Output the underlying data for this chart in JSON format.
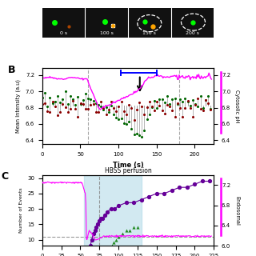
{
  "panel_B": {
    "xlim": [
      0,
      225
    ],
    "dashed_lines": [
      60,
      180
    ],
    "xticks": [
      0,
      50,
      100,
      150,
      200
    ],
    "xlabel": "Time (s)",
    "ylabel_left": "Mean Intensity (a.u)",
    "ylabel_right": "Cytosolic pH",
    "right_yticks": [
      6.4,
      6.6,
      6.8,
      7.0,
      7.2
    ],
    "ylim": [
      6.35,
      7.28
    ],
    "magenta_color": "#FF00FF",
    "green_color": "#006600",
    "dark_red_color": "#8B0000",
    "gray_stem_color": "#999999",
    "blue_color": "#0000FF",
    "stem_baseline": 6.82
  },
  "panel_C": {
    "xlim": [
      0,
      225
    ],
    "ylabel_left": "Number of Events",
    "ylabel_right": "Endosomal",
    "title": "HBSS perfusion",
    "blue_shade_x1": 55,
    "blue_shade_x2": 130,
    "dashed_line_x": 75,
    "horizontal_dashed_y": 11,
    "ylim_left": [
      8,
      31
    ],
    "ylim_right": [
      6.0,
      7.4
    ],
    "right_yticks": [
      6.0,
      6.4,
      6.8,
      7.2
    ],
    "left_yticks": [
      10,
      15,
      20,
      25,
      30
    ],
    "magenta_color": "#FF00FF",
    "purple_color": "#660099",
    "green_color": "#228B22"
  }
}
